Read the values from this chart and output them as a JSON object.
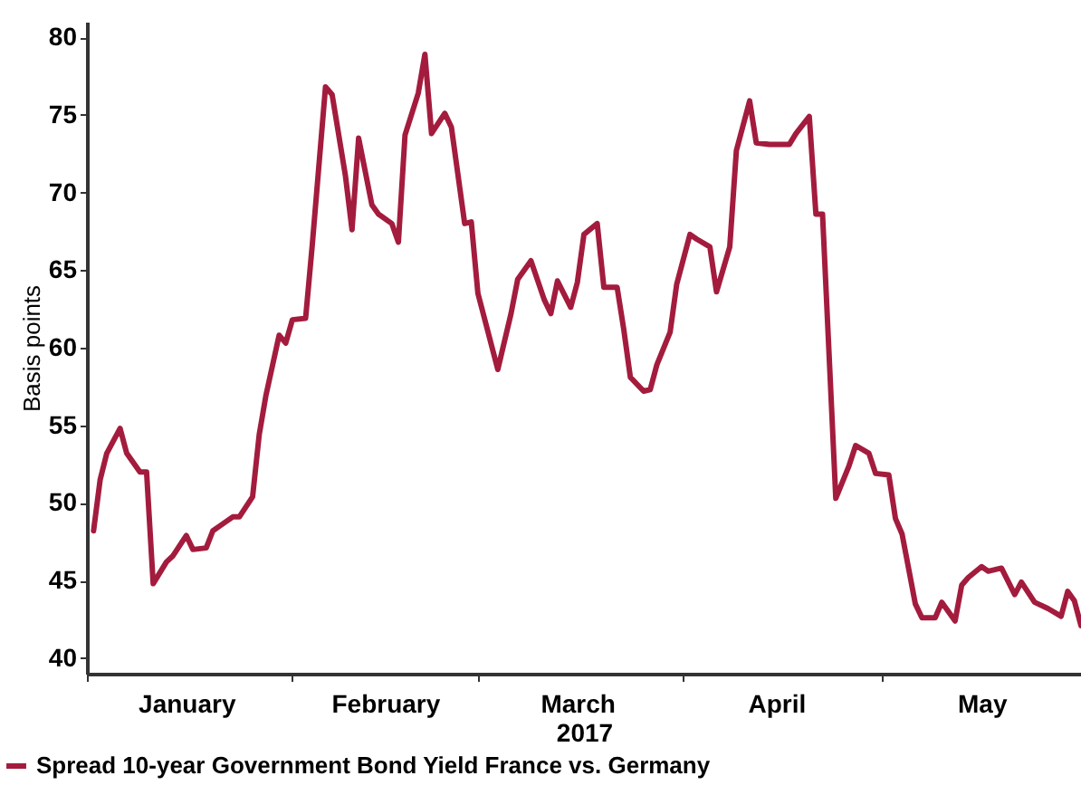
{
  "chart_data": {
    "type": "line",
    "xlabel": "2017",
    "ylabel": "Basis points",
    "x": [
      "2017-01-02",
      "2017-01-03",
      "2017-01-04",
      "2017-01-06",
      "2017-01-07",
      "2017-01-09",
      "2017-01-10",
      "2017-01-11",
      "2017-01-13",
      "2017-01-14",
      "2017-01-16",
      "2017-01-17",
      "2017-01-19",
      "2017-01-20",
      "2017-01-21",
      "2017-01-23",
      "2017-01-24",
      "2017-01-26",
      "2017-01-27",
      "2017-01-28",
      "2017-01-30",
      "2017-01-31",
      "2017-02-01",
      "2017-02-03",
      "2017-02-04",
      "2017-02-06",
      "2017-02-07",
      "2017-02-09",
      "2017-02-10",
      "2017-02-11",
      "2017-02-13",
      "2017-02-14",
      "2017-02-16",
      "2017-02-17",
      "2017-02-18",
      "2017-02-20",
      "2017-02-21",
      "2017-02-22",
      "2017-02-24",
      "2017-02-25",
      "2017-02-27",
      "2017-02-28",
      "2017-03-01",
      "2017-03-04",
      "2017-03-06",
      "2017-03-07",
      "2017-03-09",
      "2017-03-11",
      "2017-03-12",
      "2017-03-13",
      "2017-03-15",
      "2017-03-16",
      "2017-03-17",
      "2017-03-19",
      "2017-03-20",
      "2017-03-22",
      "2017-03-23",
      "2017-03-24",
      "2017-03-26",
      "2017-03-27",
      "2017-03-28",
      "2017-03-30",
      "2017-03-31",
      "2017-04-02",
      "2017-04-03",
      "2017-04-05",
      "2017-04-06",
      "2017-04-08",
      "2017-04-09",
      "2017-04-11",
      "2017-04-12",
      "2017-04-14",
      "2017-04-17",
      "2017-04-18",
      "2017-04-20",
      "2017-04-21",
      "2017-04-22",
      "2017-04-24",
      "2017-04-26",
      "2017-04-27",
      "2017-04-29",
      "2017-04-30",
      "2017-05-02",
      "2017-05-03",
      "2017-05-04",
      "2017-05-06",
      "2017-05-07",
      "2017-05-09",
      "2017-05-10",
      "2017-05-12",
      "2017-05-13",
      "2017-05-14",
      "2017-05-16",
      "2017-05-17",
      "2017-05-19",
      "2017-05-21",
      "2017-05-22",
      "2017-05-24",
      "2017-05-26",
      "2017-05-28",
      "2017-05-29",
      "2017-05-30",
      "2017-05-31"
    ],
    "series": [
      {
        "name": "Spread 10-year Government Bond Yield France vs. Germany",
        "color": "#a31c3d",
        "values": [
          48.2,
          51.5,
          53.2,
          54.8,
          53.2,
          52.0,
          52.0,
          44.8,
          46.2,
          46.6,
          47.9,
          47.0,
          47.1,
          48.2,
          48.5,
          49.1,
          49.1,
          50.4,
          54.4,
          56.9,
          60.8,
          60.3,
          61.8,
          61.9,
          66.6,
          76.8,
          76.3,
          71.1,
          67.6,
          73.5,
          69.2,
          68.6,
          68.0,
          66.8,
          73.7,
          76.4,
          78.9,
          73.8,
          75.1,
          74.2,
          68.0,
          68.1,
          63.5,
          58.6,
          62.2,
          64.4,
          65.6,
          63.1,
          62.2,
          64.3,
          62.6,
          64.2,
          67.3,
          68.0,
          63.9,
          63.9,
          61.2,
          58.1,
          57.2,
          57.3,
          58.9,
          61.0,
          64.1,
          67.3,
          67.0,
          66.5,
          63.6,
          66.5,
          72.7,
          75.9,
          73.2,
          73.1,
          73.1,
          73.8,
          74.9,
          68.6,
          68.6,
          50.3,
          52.4,
          53.7,
          53.2,
          51.9,
          51.8,
          49.0,
          48.0,
          43.5,
          42.6,
          42.6,
          43.6,
          42.4,
          44.7,
          45.2,
          45.9,
          45.6,
          45.8,
          44.1,
          44.9,
          43.6,
          43.2,
          42.7,
          44.3,
          43.7,
          42.1
        ]
      }
    ],
    "xlim": [
      "2017-01-01",
      "2017-05-31"
    ],
    "xticks": [
      {
        "value": "2017-01-01",
        "label": null
      },
      {
        "value": "2017-01-16",
        "label": "January"
      },
      {
        "value": "2017-02-01",
        "label": null
      },
      {
        "value": "2017-02-15",
        "label": "February"
      },
      {
        "value": "2017-03-01",
        "label": null
      },
      {
        "value": "2017-03-16",
        "label": "March"
      },
      {
        "value": "2017-04-01",
        "label": null
      },
      {
        "value": "2017-04-15",
        "label": "April"
      },
      {
        "value": "2017-05-01",
        "label": null
      },
      {
        "value": "2017-05-16",
        "label": "May"
      }
    ],
    "ylim": [
      39,
      81
    ],
    "yticks": [
      40,
      45,
      50,
      55,
      60,
      65,
      70,
      75,
      80
    ],
    "grid": false,
    "legend": "bottom left",
    "marker": "none",
    "line_style": "solid"
  }
}
